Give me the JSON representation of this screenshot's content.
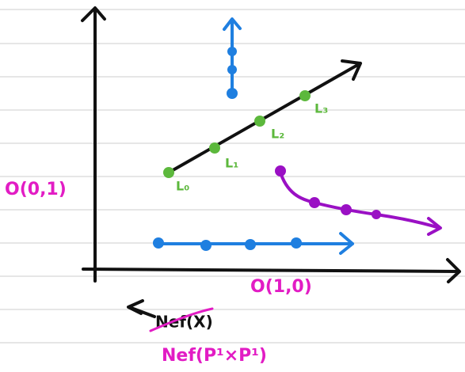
{
  "axis_labels": {
    "vertical": "O(0,1)",
    "horizontal": "O(1,0)"
  },
  "points": [
    "L₀",
    "L₁",
    "L₂",
    "L₃"
  ],
  "annotations": {
    "struck": "Nef(X)",
    "replacement": "Nef(P¹×P¹)"
  }
}
